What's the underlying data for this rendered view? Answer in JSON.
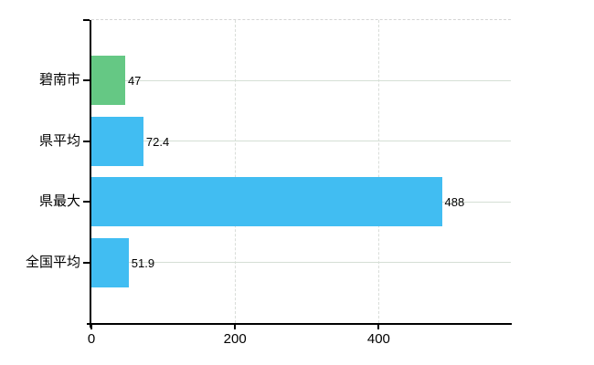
{
  "chart_data": {
    "type": "bar",
    "orientation": "horizontal",
    "title": "",
    "xlabel": "",
    "ylabel": "",
    "categories": [
      "碧南市",
      "県平均",
      "県最大",
      "全国平均"
    ],
    "values": [
      47,
      72.4,
      488,
      51.9
    ],
    "value_labels": [
      "47",
      "72.4",
      "488",
      "51.9"
    ],
    "bar_colors": [
      "#65c884",
      "#41bdf2",
      "#41bdf2",
      "#41bdf2"
    ],
    "xlim": [
      0,
      584
    ],
    "x_ticks": [
      0,
      200,
      400
    ],
    "x_tick_labels": [
      "0",
      "200",
      "400"
    ],
    "grid": true,
    "legend": false,
    "style": {
      "axis_color": "#000000",
      "h_gridline_color": "#d5dfd5",
      "v_gridline_color": "#d9ddd9",
      "top_border_color": "#d4d4d4",
      "background": "#ffffff"
    }
  }
}
